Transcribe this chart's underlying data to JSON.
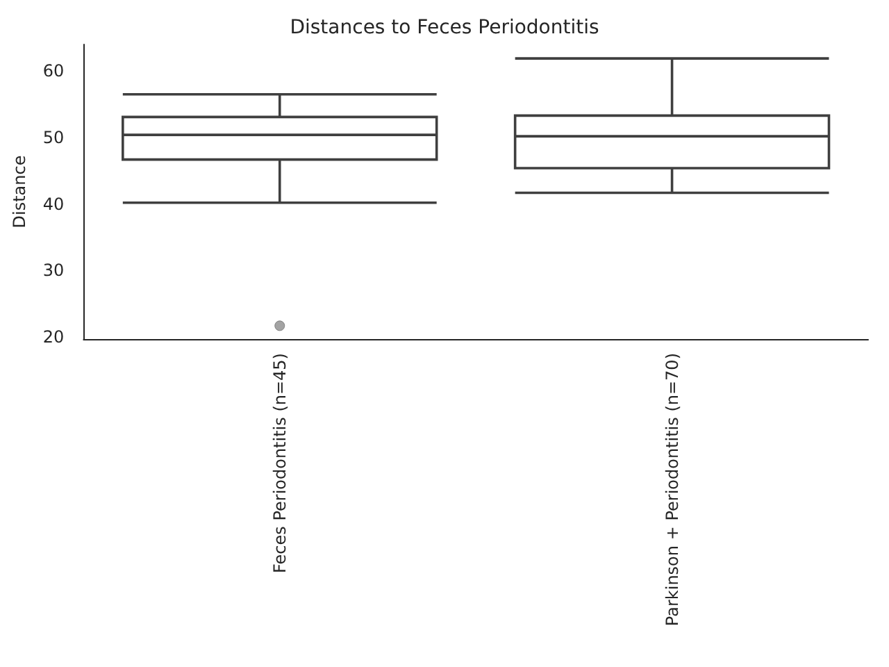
{
  "chart_data": {
    "type": "box",
    "title": "Distances to Feces Periodontitis",
    "ylabel": "Distance",
    "categories": [
      "Feces Periodontitis (n=45)",
      "Parkinson + Periodontitis (n=70)"
    ],
    "boxes": [
      {
        "low": 40.2,
        "q1": 46.7,
        "median": 50.4,
        "q3": 53.1,
        "high": 56.5,
        "outliers": [
          21.7
        ]
      },
      {
        "low": 41.7,
        "q1": 45.4,
        "median": 50.2,
        "q3": 53.3,
        "high": 61.9
      }
    ],
    "ylim": [
      19.7,
      64
    ],
    "yticks": [
      20,
      30,
      40,
      50,
      60
    ],
    "grid": false,
    "legend": false
  }
}
